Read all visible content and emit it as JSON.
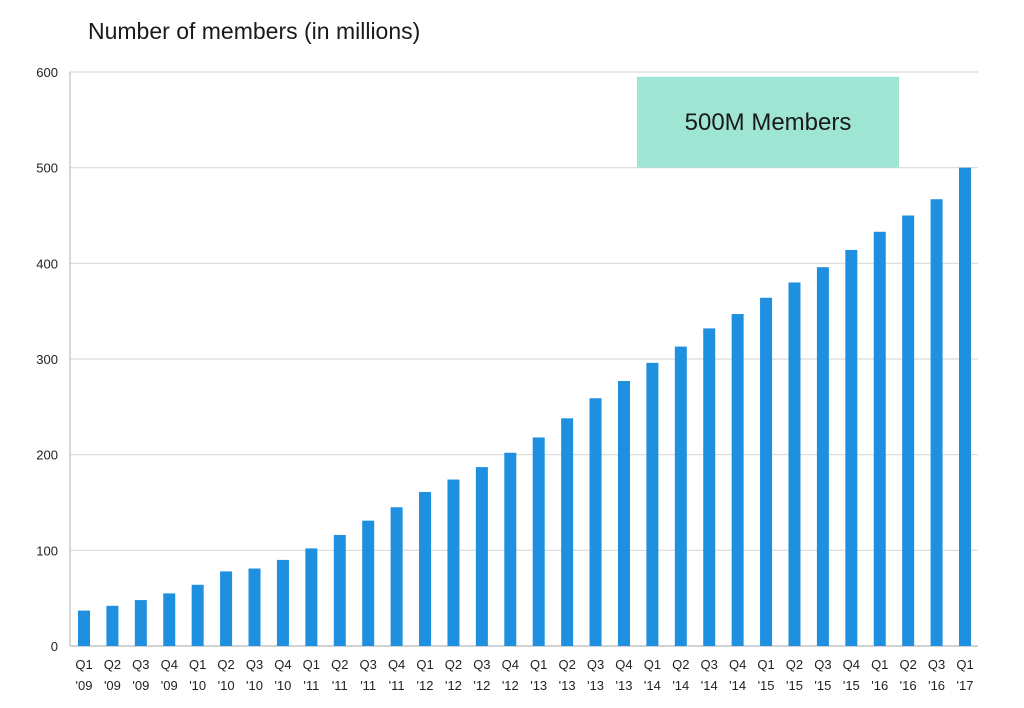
{
  "chart_data": {
    "type": "bar",
    "title": "Number of members (in millions)",
    "xlabel": "",
    "ylabel": "",
    "ylim": [
      0,
      600
    ],
    "yticks": [
      0,
      100,
      200,
      300,
      400,
      500,
      600
    ],
    "grid": true,
    "categories": [
      "Q1 '09",
      "Q2 '09",
      "Q3 '09",
      "Q4 '09",
      "Q1 '10",
      "Q2 '10",
      "Q3 '10",
      "Q4 '10",
      "Q1 '11",
      "Q2 '11",
      "Q3 '11",
      "Q4 '11",
      "Q1 '12",
      "Q2 '12",
      "Q3 '12",
      "Q4 '12",
      "Q1 '13",
      "Q2 '13",
      "Q3 '13",
      "Q4 '13",
      "Q1 '14",
      "Q2 '14",
      "Q3 '14",
      "Q4 '14",
      "Q1 '15",
      "Q2 '15",
      "Q3 '15",
      "Q4 '15",
      "Q1 '16",
      "Q2 '16",
      "Q3 '16",
      "Q1 '17"
    ],
    "values": [
      37,
      42,
      48,
      55,
      64,
      78,
      81,
      90,
      102,
      116,
      131,
      145,
      161,
      174,
      187,
      202,
      218,
      238,
      259,
      277,
      296,
      313,
      332,
      347,
      364,
      380,
      396,
      414,
      433,
      450,
      467,
      500
    ],
    "bar_color": "#1f8fe0",
    "annotation": {
      "text": "500M Members",
      "color": "#9ee5d4",
      "y_range": [
        500,
        595
      ]
    }
  }
}
